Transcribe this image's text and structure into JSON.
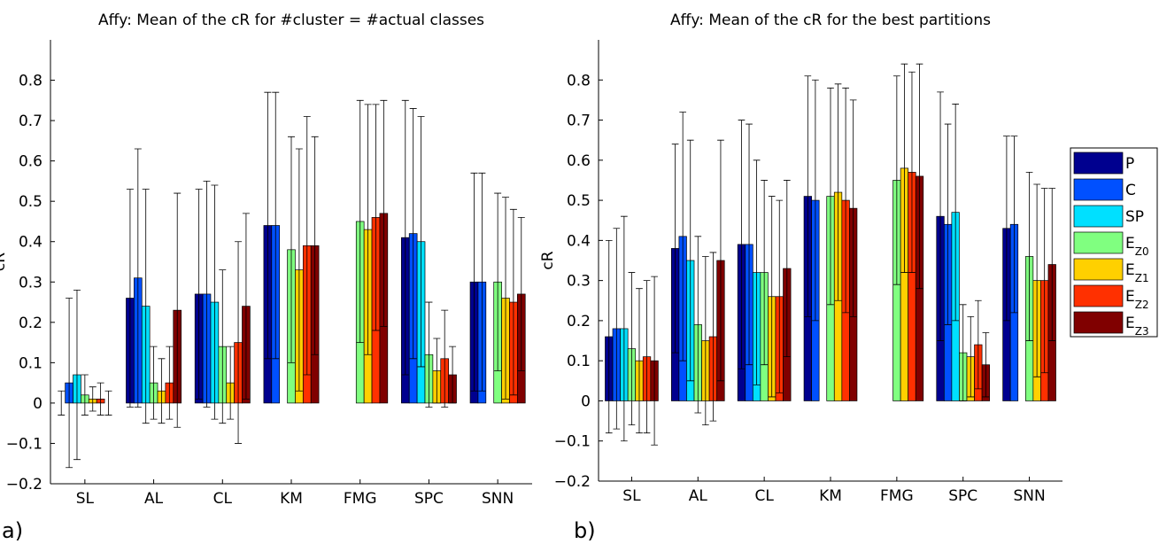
{
  "chart_data": [
    {
      "type": "bar",
      "title": "Affy: Mean of the cR for #cluster = #actual classes",
      "panel_label": "a)",
      "y_label": "cR",
      "categories": [
        "SL",
        "AL",
        "CL",
        "KM",
        "FMG",
        "SPC",
        "SNN"
      ],
      "ylim": [
        -0.2,
        0.9
      ],
      "yticks": [
        {
          "value": -0.2,
          "label": "−0.2"
        },
        {
          "value": -0.1,
          "label": "−0.1"
        },
        0,
        0.1,
        0.2,
        0.3,
        0.4,
        0.5,
        0.6,
        0.7,
        0.8
      ],
      "series": [
        {
          "color": "#00008f",
          "values": [
            0,
            0.26,
            0.27,
            0.44,
            0,
            0.41,
            0.3
          ],
          "errors": [
            0.03,
            0.27,
            0.26,
            0.33,
            null,
            0.34,
            0.27
          ]
        },
        {
          "color": "#0050ff",
          "values": [
            0.05,
            0.31,
            0.27,
            0.44,
            null,
            0.42,
            0.3
          ],
          "errors": [
            0.21,
            0.32,
            0.28,
            0.33,
            null,
            0.31,
            0.27
          ]
        },
        {
          "color": "#00e0ff",
          "values": [
            0.07,
            0.24,
            0.25,
            null,
            null,
            0.4,
            null
          ],
          "errors": [
            0.21,
            0.29,
            0.29,
            null,
            null,
            0.31,
            null
          ]
        },
        {
          "color": "#80ff80",
          "values": [
            0.02,
            0.05,
            0.14,
            0.38,
            0.45,
            0.12,
            0.3
          ],
          "errors": [
            0.05,
            0.09,
            0.19,
            0.28,
            0.3,
            0.13,
            0.22
          ]
        },
        {
          "color": "#ffd000",
          "values": [
            0.01,
            0.03,
            0.05,
            0.33,
            0.43,
            0.08,
            0.26
          ],
          "errors": [
            0.03,
            0.08,
            0.09,
            0.3,
            0.31,
            0.08,
            0.25
          ]
        },
        {
          "color": "#ff3000",
          "values": [
            0.01,
            0.05,
            0.15,
            0.39,
            0.46,
            0.11,
            0.25
          ],
          "errors": [
            0.04,
            0.09,
            0.25,
            0.32,
            0.28,
            0.12,
            0.23
          ]
        },
        {
          "color": "#800000",
          "values": [
            0,
            0.23,
            0.24,
            0.39,
            0.47,
            0.07,
            0.27
          ],
          "errors": [
            0.03,
            0.29,
            0.23,
            0.27,
            0.28,
            0.07,
            0.19
          ]
        }
      ]
    },
    {
      "type": "bar",
      "title": "Affy: Mean of the cR for the best partitions",
      "panel_label": "b)",
      "y_label": "cR",
      "categories": [
        "SL",
        "AL",
        "CL",
        "KM",
        "FMG",
        "SPC",
        "SNN"
      ],
      "ylim": [
        -0.2,
        0.9
      ],
      "yticks": [
        {
          "value": -0.2,
          "label": "−0.2"
        },
        {
          "value": -0.1,
          "label": "−0.1"
        },
        0,
        0.1,
        0.2,
        0.3,
        0.4,
        0.5,
        0.6,
        0.7,
        0.8
      ],
      "legend": "outside-right",
      "series": [
        {
          "name": "P",
          "color": "#00008f",
          "values": [
            0.16,
            0.38,
            0.39,
            0.51,
            null,
            0.46,
            0.43
          ],
          "errors": [
            0.24,
            0.26,
            0.31,
            0.3,
            null,
            0.31,
            0.23
          ]
        },
        {
          "name": "C",
          "color": "#0050ff",
          "values": [
            0.18,
            0.41,
            0.39,
            0.5,
            null,
            0.44,
            0.44
          ],
          "errors": [
            0.25,
            0.31,
            0.3,
            0.3,
            null,
            0.25,
            0.22
          ]
        },
        {
          "name": "SP",
          "color": "#00e0ff",
          "values": [
            0.18,
            0.35,
            0.32,
            null,
            null,
            0.47,
            null
          ],
          "errors": [
            0.28,
            0.3,
            0.28,
            null,
            null,
            0.27,
            null
          ]
        },
        {
          "name": "EZ0",
          "color": "#80ff80",
          "values": [
            0.13,
            0.19,
            0.32,
            0.51,
            0.55,
            0.12,
            0.36
          ],
          "errors": [
            0.19,
            0.22,
            0.23,
            0.27,
            0.26,
            0.12,
            0.21
          ]
        },
        {
          "name": "EZ1",
          "color": "#ffd000",
          "values": [
            0.1,
            0.15,
            0.26,
            0.52,
            0.58,
            0.11,
            0.3
          ],
          "errors": [
            0.18,
            0.21,
            0.25,
            0.27,
            0.26,
            0.1,
            0.24
          ]
        },
        {
          "name": "EZ2",
          "color": "#ff3000",
          "values": [
            0.11,
            0.16,
            0.26,
            0.5,
            0.57,
            0.14,
            0.3
          ],
          "errors": [
            0.19,
            0.21,
            0.24,
            0.28,
            0.25,
            0.11,
            0.23
          ]
        },
        {
          "name": "EZ3",
          "color": "#800000",
          "values": [
            0.1,
            0.35,
            0.33,
            0.48,
            0.56,
            0.09,
            0.34
          ],
          "errors": [
            0.21,
            0.3,
            0.22,
            0.27,
            0.28,
            0.08,
            0.19
          ]
        }
      ]
    }
  ]
}
